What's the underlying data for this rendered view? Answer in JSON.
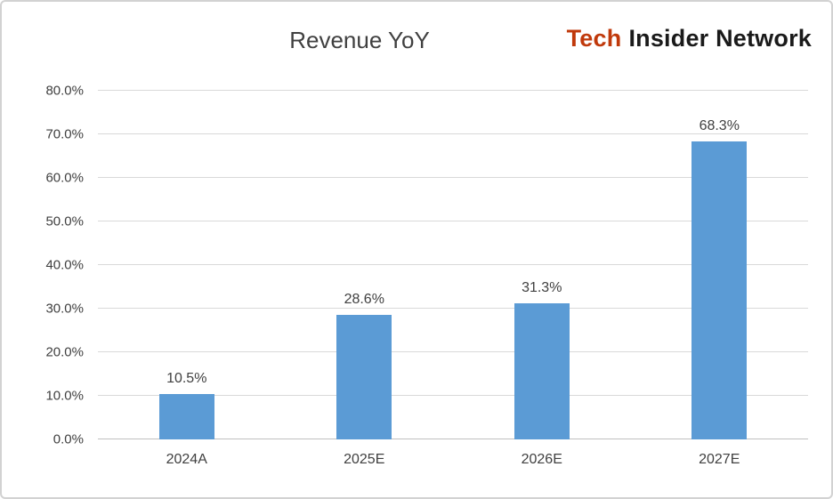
{
  "brand": {
    "word1": "Tech",
    "word2": "Insider Network",
    "word1_color": "#C0390B",
    "word2_color": "#1A1A1A"
  },
  "chart_data": {
    "type": "bar",
    "title": "Revenue YoY",
    "categories": [
      "2024A",
      "2025E",
      "2026E",
      "2027E"
    ],
    "values": [
      10.5,
      28.6,
      31.3,
      68.3
    ],
    "value_labels": [
      "10.5%",
      "28.6%",
      "31.3%",
      "68.3%"
    ],
    "xlabel": "",
    "ylabel": "",
    "ylim": [
      0,
      80
    ],
    "ytick_values": [
      0,
      10,
      20,
      30,
      40,
      50,
      60,
      70,
      80
    ],
    "ytick_labels": [
      "0.0%",
      "10.0%",
      "20.0%",
      "30.0%",
      "40.0%",
      "50.0%",
      "60.0%",
      "70.0%",
      "80.0%"
    ],
    "grid": true,
    "legend": false,
    "bar_color": "#5B9BD5",
    "gridline_color": "#D9D9D9"
  }
}
